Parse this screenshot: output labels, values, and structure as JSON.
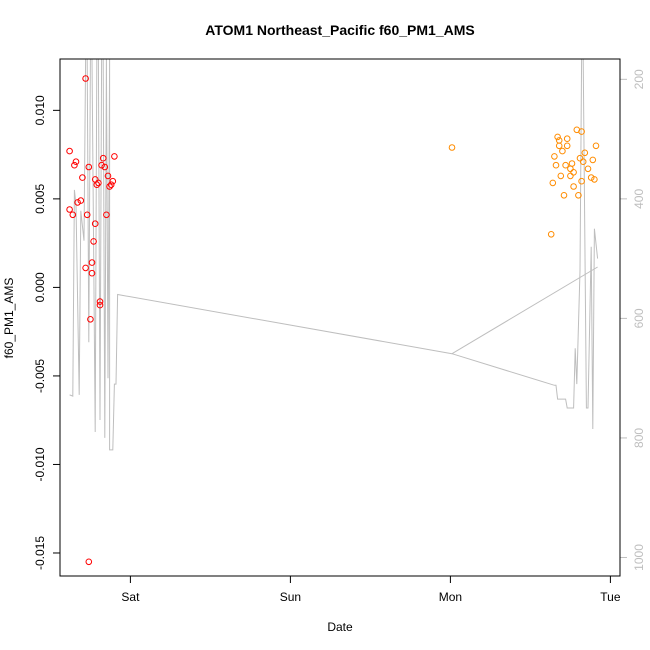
{
  "chart_data": {
    "type": "scatter",
    "title": "ATOM1 Northeast_Pacific f60_PM1_AMS",
    "xlabel": "Date",
    "ylabel": "f60_PM1_AMS",
    "x_ticks": [
      {
        "label": "Sat",
        "t": 1.0
      },
      {
        "label": "Sun",
        "t": 2.0
      },
      {
        "label": "Mon",
        "t": 3.0
      },
      {
        "label": "Tue",
        "t": 4.0
      }
    ],
    "xlim": [
      0.56,
      4.06
    ],
    "ylim": [
      -0.0163,
      0.0129
    ],
    "y_ticks": [
      -0.015,
      -0.01,
      -0.005,
      0.0,
      0.005,
      0.01
    ],
    "y_tick_labels": [
      "-0.015",
      "-0.010",
      "-0.005",
      "0.000",
      "0.005",
      "0.010"
    ],
    "y2_ticks": [
      200,
      400,
      600,
      800,
      1000
    ],
    "y2_lim": [
      1031,
      166
    ],
    "colors": {
      "series1": "#ff0000",
      "series2": "#ff8c00",
      "altitude": "#bebebe"
    },
    "series": [
      {
        "name": "red",
        "color": "#ff0000",
        "points": [
          [
            0.62,
            0.0077
          ],
          [
            0.62,
            0.0044
          ],
          [
            0.64,
            0.0041
          ],
          [
            0.65,
            0.0069
          ],
          [
            0.66,
            0.0071
          ],
          [
            0.67,
            0.0048
          ],
          [
            0.69,
            0.0049
          ],
          [
            0.7,
            0.0062
          ],
          [
            0.72,
            0.0118
          ],
          [
            0.72,
            0.0011
          ],
          [
            0.73,
            0.0041
          ],
          [
            0.74,
            -0.0155
          ],
          [
            0.74,
            0.0068
          ],
          [
            0.75,
            -0.0018
          ],
          [
            0.76,
            0.0008
          ],
          [
            0.76,
            0.0014
          ],
          [
            0.77,
            0.0026
          ],
          [
            0.78,
            0.0061
          ],
          [
            0.78,
            0.0036
          ],
          [
            0.79,
            0.0058
          ],
          [
            0.8,
            0.0059
          ],
          [
            0.81,
            -0.001
          ],
          [
            0.81,
            -0.0008
          ],
          [
            0.82,
            0.0069
          ],
          [
            0.83,
            0.0073
          ],
          [
            0.84,
            0.0068
          ],
          [
            0.85,
            0.0041
          ],
          [
            0.86,
            0.0063
          ],
          [
            0.87,
            0.0057
          ],
          [
            0.88,
            0.0058
          ],
          [
            0.89,
            0.006
          ],
          [
            0.9,
            0.0074
          ]
        ]
      },
      {
        "name": "orange",
        "color": "#ff8c00",
        "points": [
          [
            3.01,
            0.0079
          ],
          [
            3.63,
            0.003
          ],
          [
            3.64,
            0.0059
          ],
          [
            3.65,
            0.0074
          ],
          [
            3.66,
            0.0069
          ],
          [
            3.67,
            0.0085
          ],
          [
            3.68,
            0.008
          ],
          [
            3.68,
            0.0083
          ],
          [
            3.69,
            0.0063
          ],
          [
            3.7,
            0.0077
          ],
          [
            3.71,
            0.0052
          ],
          [
            3.72,
            0.0069
          ],
          [
            3.73,
            0.0084
          ],
          [
            3.73,
            0.008
          ],
          [
            3.75,
            0.0067
          ],
          [
            3.75,
            0.0063
          ],
          [
            3.76,
            0.007
          ],
          [
            3.77,
            0.0065
          ],
          [
            3.77,
            0.0057
          ],
          [
            3.79,
            0.0089
          ],
          [
            3.8,
            0.0052
          ],
          [
            3.81,
            0.0073
          ],
          [
            3.82,
            0.0088
          ],
          [
            3.82,
            0.006
          ],
          [
            3.83,
            0.0071
          ],
          [
            3.84,
            0.0076
          ],
          [
            3.86,
            0.0067
          ],
          [
            3.88,
            0.0062
          ],
          [
            3.89,
            0.0072
          ],
          [
            3.9,
            0.0061
          ],
          [
            3.91,
            0.008
          ]
        ]
      }
    ],
    "altitude_line": [
      [
        0.62,
        728
      ],
      [
        0.64,
        730
      ],
      [
        0.65,
        385
      ],
      [
        0.66,
        410
      ],
      [
        0.68,
        728
      ],
      [
        0.69,
        420
      ],
      [
        0.71,
        470
      ],
      [
        0.72,
        166
      ],
      [
        0.73,
        166
      ],
      [
        0.74,
        640
      ],
      [
        0.75,
        166
      ],
      [
        0.76,
        166
      ],
      [
        0.78,
        790
      ],
      [
        0.79,
        166
      ],
      [
        0.8,
        166
      ],
      [
        0.81,
        770
      ],
      [
        0.82,
        166
      ],
      [
        0.83,
        166
      ],
      [
        0.84,
        800
      ],
      [
        0.85,
        166
      ],
      [
        0.86,
        700
      ],
      [
        0.87,
        166
      ],
      [
        0.87,
        820
      ],
      [
        0.89,
        820
      ],
      [
        0.9,
        710
      ],
      [
        0.91,
        710
      ],
      [
        0.92,
        560
      ],
      [
        3.01,
        659
      ],
      [
        3.65,
        712
      ],
      [
        3.66,
        712
      ],
      [
        3.67,
        735
      ],
      [
        3.72,
        735
      ],
      [
        3.73,
        750
      ],
      [
        3.77,
        750
      ],
      [
        3.78,
        650
      ],
      [
        3.79,
        710
      ],
      [
        3.81,
        520
      ],
      [
        3.82,
        166
      ],
      [
        3.83,
        166
      ],
      [
        3.85,
        750
      ],
      [
        3.86,
        750
      ],
      [
        3.88,
        480
      ],
      [
        3.89,
        785
      ],
      [
        3.9,
        450
      ],
      [
        3.92,
        500
      ]
    ],
    "altitude_branch": [
      [
        3.01,
        659
      ],
      [
        3.92,
        514
      ]
    ]
  }
}
